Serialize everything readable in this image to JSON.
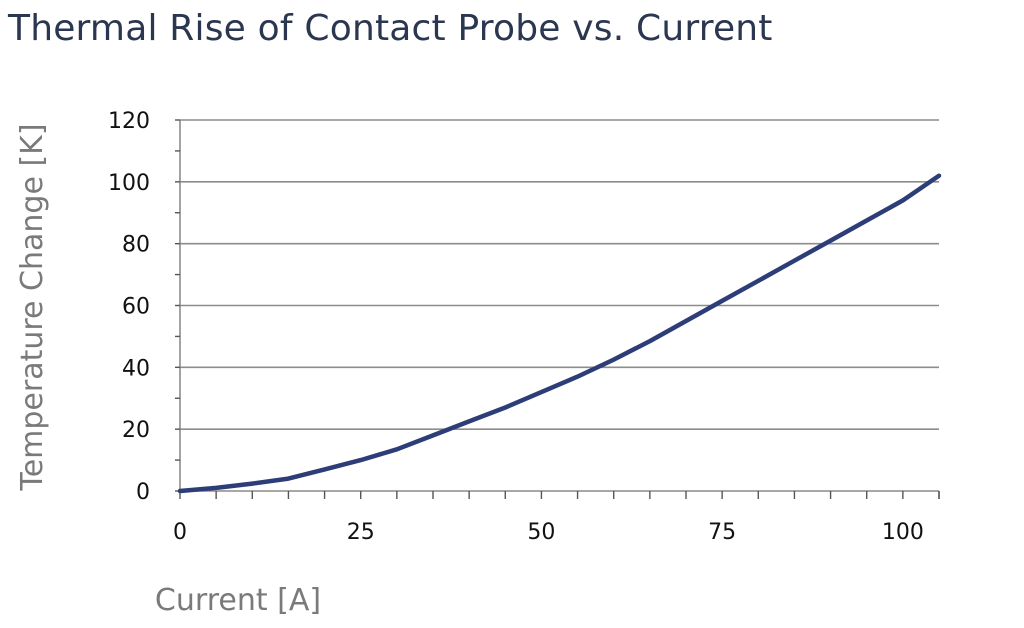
{
  "chart_data": {
    "type": "line",
    "title": "Thermal Rise of Contact Probe vs. Current",
    "xlabel": "Current [A]",
    "ylabel": "Temperature Change [K]",
    "xlim": [
      0,
      105
    ],
    "ylim": [
      0,
      120
    ],
    "x_ticks": [
      0,
      25,
      50,
      75,
      100
    ],
    "y_ticks": [
      0,
      20,
      40,
      60,
      80,
      100,
      120
    ],
    "grid": "horizontal",
    "series": [
      {
        "color": "#2d3d78",
        "x": [
          0,
          5,
          10,
          15,
          20,
          25,
          30,
          35,
          40,
          45,
          50,
          55,
          60,
          65,
          70,
          75,
          80,
          85,
          90,
          95,
          100,
          105
        ],
        "y": [
          0,
          1,
          2.4,
          4,
          7,
          10,
          13.5,
          18,
          22.5,
          27,
          32,
          37,
          42.5,
          48.5,
          55,
          61.5,
          68,
          74.5,
          81,
          87.5,
          94,
          102
        ]
      }
    ]
  }
}
